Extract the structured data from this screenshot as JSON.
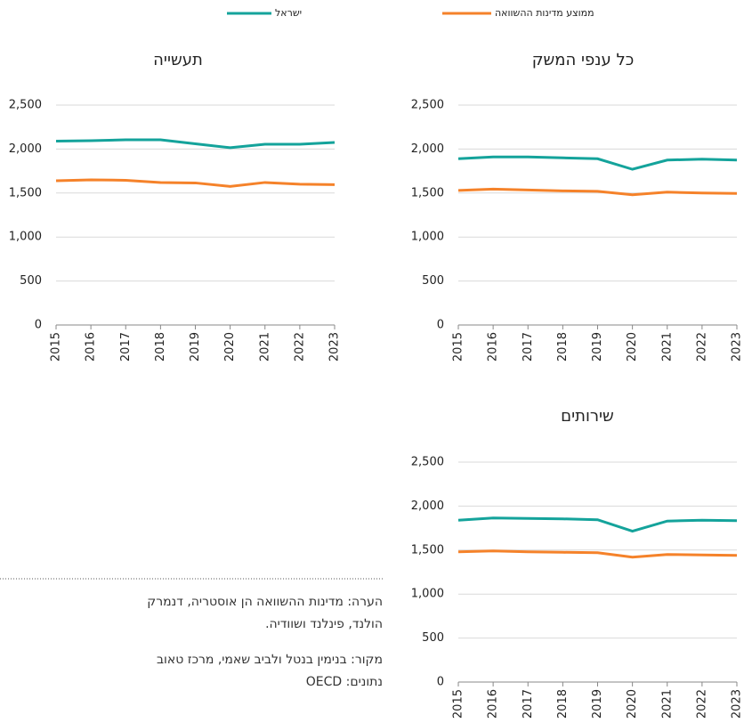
{
  "chart_data": [
    {
      "type": "line",
      "title": "כל ענפי המשק",
      "categories": [
        "2015",
        "2016",
        "2017",
        "2018",
        "2019",
        "2020",
        "2021",
        "2022",
        "2023"
      ],
      "series": [
        {
          "name": "ישראל",
          "color": "#14a39b",
          "values": [
            1890,
            1910,
            1910,
            1900,
            1890,
            1770,
            1875,
            1885,
            1875
          ]
        },
        {
          "name": "ממוצע מדינות ההשוואה",
          "color": "#f5822a",
          "values": [
            1530,
            1545,
            1535,
            1525,
            1520,
            1480,
            1510,
            1500,
            1495
          ]
        }
      ],
      "ylim": [
        0,
        2500
      ],
      "yticks": [
        0,
        {
          "value": 500,
          "label": "500"
        },
        {
          "value": 1000,
          "label": "1,000"
        },
        {
          "value": 1500,
          "label": "1,500"
        },
        {
          "value": 2000,
          "label": "2,000"
        },
        {
          "value": 2500,
          "label": "2,500"
        }
      ],
      "grid": true
    },
    {
      "type": "line",
      "title": "תעשייה",
      "categories": [
        "2015",
        "2016",
        "2017",
        "2018",
        "2019",
        "2020",
        "2021",
        "2022",
        "2023"
      ],
      "series": [
        {
          "name": "ישראל",
          "color": "#14a39b",
          "values": [
            2090,
            2095,
            2105,
            2105,
            2060,
            2015,
            2055,
            2055,
            2075
          ]
        },
        {
          "name": "ממוצע מדינות ההשוואה",
          "color": "#f5822a",
          "values": [
            1640,
            1650,
            1645,
            1620,
            1615,
            1575,
            1620,
            1600,
            1595
          ]
        }
      ],
      "ylim": [
        0,
        2500
      ],
      "yticks": [
        0,
        {
          "value": 500,
          "label": "500"
        },
        {
          "value": 1000,
          "label": "1,000"
        },
        {
          "value": 1500,
          "label": "1,500"
        },
        {
          "value": 2000,
          "label": "2,000"
        },
        {
          "value": 2500,
          "label": "2,500"
        }
      ],
      "grid": true
    },
    {
      "type": "line",
      "title": "שירותים",
      "categories": [
        "2015",
        "2016",
        "2017",
        "2018",
        "2019",
        "2020",
        "2021",
        "2022",
        "2023"
      ],
      "series": [
        {
          "name": "ישראל",
          "color": "#14a39b",
          "values": [
            1840,
            1865,
            1860,
            1855,
            1845,
            1715,
            1830,
            1840,
            1835
          ]
        },
        {
          "name": "ממוצע מדינות ההשוואה",
          "color": "#f5822a",
          "values": [
            1480,
            1490,
            1480,
            1475,
            1470,
            1420,
            1450,
            1445,
            1440
          ]
        }
      ],
      "ylim": [
        0,
        2500
      ],
      "yticks": [
        0,
        {
          "value": 500,
          "label": "500"
        },
        {
          "value": 1000,
          "label": "1,000"
        },
        {
          "value": 1500,
          "label": "1,500"
        },
        {
          "value": 2000,
          "label": "2,000"
        },
        {
          "value": 2500,
          "label": "2,500"
        }
      ],
      "grid": true
    }
  ],
  "notes": [
    "הערה: מדינות ההשוואה הן אוסטריה, דנמרק",
    "הולנד, פינלנד ושוודיה.",
    "מקור: בנימין בנטל ולביב שאמי, מרכז טאוב",
    "נתונים: OECD"
  ]
}
